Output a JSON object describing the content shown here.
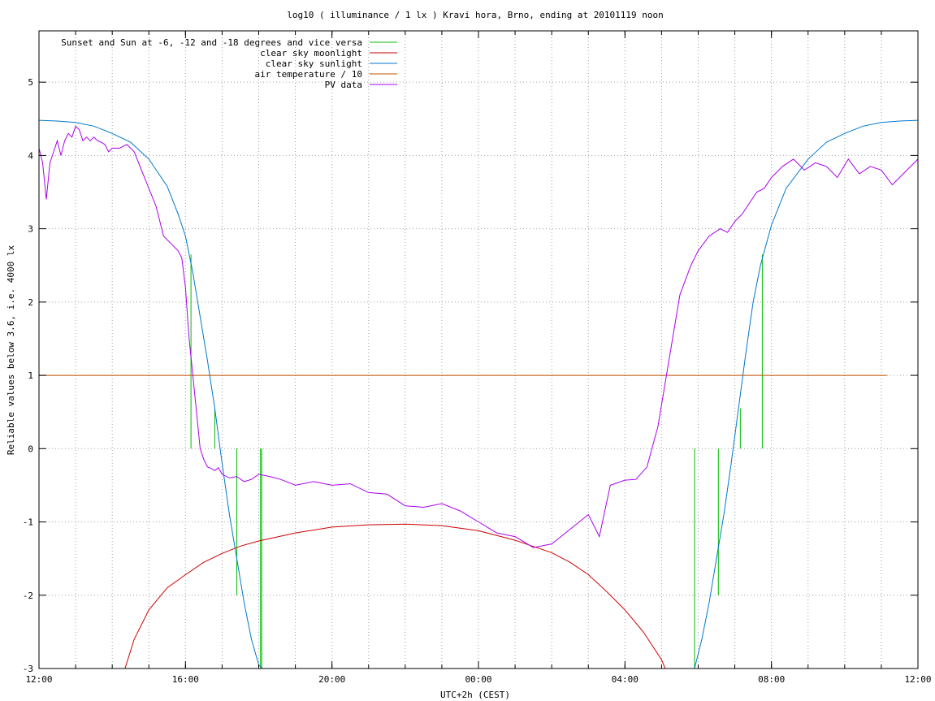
{
  "chart_data": {
    "type": "line",
    "title": "log10 ( illuminance / 1 lx ) Kravi hora, Brno, ending at 20101119 noon",
    "xlabel": "UTC+2h (CEST)",
    "ylabel": "Reliable values below 3.6, i.e. 4000 lx",
    "xlim": [
      0,
      24
    ],
    "ylim": [
      -3,
      5.7
    ],
    "x_ticks": [
      {
        "value": 0,
        "label": "12:00"
      },
      {
        "value": 4,
        "label": "16:00"
      },
      {
        "value": 8,
        "label": "20:00"
      },
      {
        "value": 12,
        "label": "00:00"
      },
      {
        "value": 16,
        "label": "04:00"
      },
      {
        "value": 20,
        "label": "08:00"
      },
      {
        "value": 24,
        "label": "12:00"
      }
    ],
    "y_ticks": [
      {
        "value": -3,
        "label": "-3"
      },
      {
        "value": -2,
        "label": "-2"
      },
      {
        "value": -1,
        "label": "-1"
      },
      {
        "value": 0,
        "label": "0"
      },
      {
        "value": 1,
        "label": "1"
      },
      {
        "value": 2,
        "label": "2"
      },
      {
        "value": 3,
        "label": "3"
      },
      {
        "value": 4,
        "label": "4"
      },
      {
        "value": 5,
        "label": "5"
      }
    ],
    "minor_x_step": 1,
    "grid": true,
    "legend": "top-left",
    "series": [
      {
        "name": "Sunset and Sun at -6, -12 and -18 degrees and vice versa",
        "color": "#00bb00",
        "kind": "impulses",
        "points": [
          {
            "x": 4.15,
            "top": 2.65,
            "bottom": 0
          },
          {
            "x": 4.8,
            "top": 0.55,
            "bottom": 0
          },
          {
            "x": 5.4,
            "top": 0,
            "bottom": -2.0
          },
          {
            "x": 6.05,
            "top": 0,
            "bottom": -3.0
          },
          {
            "x": 6.08,
            "top": 0,
            "bottom": -3.0
          },
          {
            "x": 17.9,
            "top": 0,
            "bottom": -3.0
          },
          {
            "x": 18.55,
            "top": 0,
            "bottom": -2.0
          },
          {
            "x": 19.15,
            "top": 0.55,
            "bottom": 0
          },
          {
            "x": 19.75,
            "top": 2.65,
            "bottom": 0
          }
        ]
      },
      {
        "name": "clear sky moonlight",
        "color": "#cc0000",
        "x": [
          2.35,
          2.6,
          3.0,
          3.5,
          4.0,
          4.5,
          5.0,
          5.5,
          6.0,
          7.0,
          8.0,
          9.0,
          10.0,
          11.0,
          12.0,
          13.0,
          14.0,
          14.5,
          15.0,
          15.5,
          16.0,
          16.5,
          17.0,
          17.1
        ],
        "y": [
          -3.0,
          -2.6,
          -2.2,
          -1.9,
          -1.72,
          -1.55,
          -1.43,
          -1.33,
          -1.26,
          -1.15,
          -1.07,
          -1.04,
          -1.03,
          -1.05,
          -1.12,
          -1.25,
          -1.42,
          -1.55,
          -1.72,
          -1.95,
          -2.2,
          -2.5,
          -2.88,
          -3.0
        ]
      },
      {
        "name": "clear sky sunlight",
        "color": "#0077cc",
        "x": [
          0,
          0.5,
          1.0,
          1.5,
          2.0,
          2.5,
          3.0,
          3.5,
          3.8,
          4.0,
          4.2,
          4.4,
          4.6,
          4.8,
          5.0,
          5.2,
          5.4,
          5.6,
          5.8,
          6.0,
          6.1,
          17.9,
          18.1,
          18.3,
          18.5,
          18.7,
          18.9,
          19.1,
          19.3,
          19.5,
          19.7,
          20.0,
          20.4,
          21.0,
          21.5,
          22.0,
          22.5,
          23.0,
          23.5,
          24.0
        ],
        "y": [
          4.48,
          4.47,
          4.45,
          4.4,
          4.3,
          4.18,
          3.95,
          3.58,
          3.2,
          2.9,
          2.4,
          1.8,
          1.2,
          0.55,
          -0.2,
          -0.9,
          -1.5,
          -2.1,
          -2.6,
          -2.95,
          -3.0,
          -3.0,
          -2.6,
          -2.1,
          -1.5,
          -0.9,
          -0.2,
          0.55,
          1.3,
          2.0,
          2.5,
          3.05,
          3.55,
          3.95,
          4.18,
          4.3,
          4.4,
          4.45,
          4.47,
          4.48
        ]
      },
      {
        "name": "air temperature / 10",
        "color": "#c05000",
        "x": [
          0,
          23.15
        ],
        "y": [
          1.0,
          1.0
        ]
      },
      {
        "name": "PV data",
        "color": "#aa00ee",
        "x": [
          0,
          0.1,
          0.2,
          0.3,
          0.4,
          0.5,
          0.6,
          0.7,
          0.8,
          0.9,
          1.0,
          1.1,
          1.2,
          1.3,
          1.4,
          1.5,
          1.6,
          1.7,
          1.8,
          1.9,
          2.0,
          2.2,
          2.4,
          2.6,
          2.8,
          3.0,
          3.2,
          3.4,
          3.6,
          3.7,
          3.8,
          3.9,
          4.0,
          4.1,
          4.2,
          4.3,
          4.4,
          4.5,
          4.6,
          4.7,
          4.8,
          4.9,
          5.0,
          5.2,
          5.4,
          5.6,
          5.8,
          6.0,
          6.3,
          6.6,
          7.0,
          7.5,
          8.0,
          8.5,
          9.0,
          9.5,
          10.0,
          10.5,
          11.0,
          11.5,
          12.0,
          12.5,
          13.0,
          13.5,
          14.0,
          14.5,
          15.0,
          15.3,
          15.6,
          16.0,
          16.3,
          16.6,
          16.9,
          17.2,
          17.5,
          17.8,
          18.0,
          18.3,
          18.6,
          18.8,
          19.0,
          19.2,
          19.4,
          19.6,
          19.8,
          20.0,
          20.3,
          20.6,
          20.9,
          21.2,
          21.5,
          21.8,
          22.1,
          22.4,
          22.7,
          23.0,
          23.3,
          23.6,
          23.8,
          24.0
        ],
        "y": [
          4.1,
          3.9,
          3.4,
          3.9,
          4.05,
          4.2,
          4.0,
          4.2,
          4.3,
          4.25,
          4.4,
          4.35,
          4.2,
          4.25,
          4.2,
          4.25,
          4.2,
          4.18,
          4.15,
          4.05,
          4.1,
          4.1,
          4.15,
          4.05,
          3.8,
          3.55,
          3.3,
          2.9,
          2.8,
          2.75,
          2.7,
          2.6,
          2.2,
          1.5,
          1.0,
          0.5,
          0.0,
          -0.15,
          -0.25,
          -0.27,
          -0.3,
          -0.26,
          -0.35,
          -0.4,
          -0.38,
          -0.45,
          -0.42,
          -0.35,
          -0.38,
          -0.42,
          -0.5,
          -0.45,
          -0.5,
          -0.48,
          -0.6,
          -0.62,
          -0.78,
          -0.8,
          -0.75,
          -0.85,
          -1.0,
          -1.15,
          -1.2,
          -1.35,
          -1.3,
          -1.1,
          -0.9,
          -1.2,
          -0.5,
          -0.43,
          -0.42,
          -0.25,
          0.3,
          1.2,
          2.1,
          2.5,
          2.7,
          2.9,
          3.0,
          2.95,
          3.1,
          3.2,
          3.35,
          3.5,
          3.55,
          3.7,
          3.85,
          3.95,
          3.8,
          3.9,
          3.85,
          3.7,
          3.95,
          3.75,
          3.85,
          3.8,
          3.6,
          3.75,
          3.85,
          3.95
        ]
      }
    ]
  }
}
